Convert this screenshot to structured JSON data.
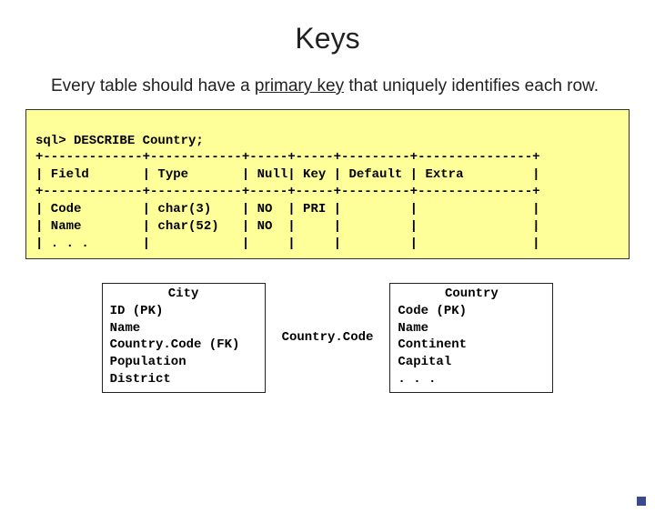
{
  "title": "Keys",
  "subtitle_pre": "Every table should have a ",
  "subtitle_underline": "primary key",
  "subtitle_post": " that uniquely identifies each row.",
  "sql": {
    "bg_color": "#ffff99",
    "border_color": "#333333",
    "font": "Courier New",
    "fontsize": 14,
    "lines": [
      "sql> DESCRIBE Country;",
      "+-------------+------------+-----+-----+---------+---------------+",
      "| Field       | Type       | Null| Key | Default | Extra         |",
      "+-------------+------------+-----+-----+---------+---------------+",
      "| Code        | char(3)    | NO  | PRI |         |               |",
      "| Name        | char(52)   | NO  |     |         |               |",
      "| . . .       |            |     |     |         |               |"
    ]
  },
  "entities": {
    "city": {
      "title": "City",
      "rows": [
        "ID (PK)",
        "Name",
        "Country.Code (FK)",
        "Population",
        "District"
      ]
    },
    "link_label": "Country.Code",
    "country": {
      "title": "Country",
      "rows": [
        "Code (PK)",
        "Name",
        "Continent",
        "Capital",
        ". . ."
      ]
    }
  },
  "colors": {
    "page_bg": "#ffffff",
    "text": "#222222",
    "corner_dot": "#3a4a8c"
  }
}
